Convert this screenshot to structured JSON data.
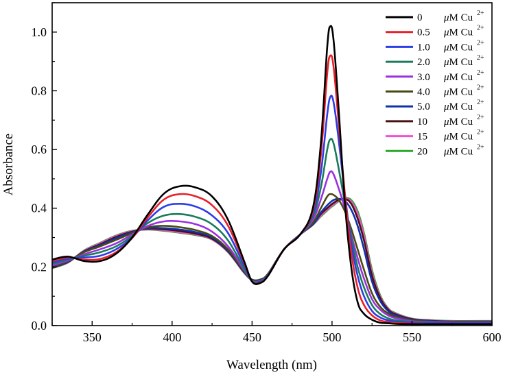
{
  "chart_data": {
    "type": "line",
    "title": "",
    "xlabel": "Wavelength (nm)",
    "ylabel": "Absorbance",
    "xlim": [
      325,
      600
    ],
    "ylim": [
      0,
      1.1
    ],
    "xticks": [
      "350",
      "400",
      "450",
      "500",
      "550",
      "600"
    ],
    "yticks": [
      "0.0",
      "0.2",
      "0.4",
      "0.6",
      "0.8",
      "1.0"
    ],
    "legend_position": "top-right",
    "legend_unit": "μM Cu",
    "legend_superscript": "2+",
    "x": [
      325,
      335,
      345,
      355,
      365,
      375,
      385,
      395,
      405,
      415,
      425,
      435,
      445,
      450,
      455,
      460,
      470,
      480,
      488,
      493,
      497,
      499,
      501,
      504,
      508,
      512,
      516,
      520,
      525,
      530,
      535,
      540,
      550,
      560,
      575,
      600
    ],
    "series": [
      {
        "name": "0",
        "color": "#000000",
        "values": [
          0.225,
          0.235,
          0.22,
          0.22,
          0.245,
          0.3,
          0.38,
          0.45,
          0.475,
          0.47,
          0.44,
          0.36,
          0.22,
          0.15,
          0.145,
          0.17,
          0.26,
          0.31,
          0.4,
          0.62,
          0.95,
          1.02,
          0.97,
          0.75,
          0.42,
          0.2,
          0.08,
          0.04,
          0.02,
          0.01,
          0.008,
          0.006,
          0.005,
          0.005,
          0.005,
          0.005
        ]
      },
      {
        "name": "0.5",
        "color": "#e8202a",
        "values": [
          0.22,
          0.232,
          0.225,
          0.227,
          0.25,
          0.298,
          0.37,
          0.43,
          0.448,
          0.44,
          0.41,
          0.34,
          0.215,
          0.15,
          0.147,
          0.17,
          0.26,
          0.31,
          0.39,
          0.58,
          0.86,
          0.92,
          0.88,
          0.7,
          0.45,
          0.25,
          0.13,
          0.07,
          0.035,
          0.018,
          0.012,
          0.009,
          0.007,
          0.006,
          0.006,
          0.006
        ]
      },
      {
        "name": "1.0",
        "color": "#2a3de6",
        "values": [
          0.215,
          0.228,
          0.232,
          0.238,
          0.26,
          0.3,
          0.36,
          0.405,
          0.415,
          0.405,
          0.375,
          0.315,
          0.205,
          0.15,
          0.15,
          0.17,
          0.26,
          0.31,
          0.38,
          0.52,
          0.72,
          0.78,
          0.76,
          0.64,
          0.45,
          0.28,
          0.17,
          0.1,
          0.05,
          0.028,
          0.018,
          0.013,
          0.009,
          0.008,
          0.008,
          0.008
        ]
      },
      {
        "name": "2.0",
        "color": "#1a7a5c",
        "values": [
          0.21,
          0.225,
          0.238,
          0.25,
          0.27,
          0.305,
          0.35,
          0.375,
          0.38,
          0.37,
          0.345,
          0.29,
          0.195,
          0.152,
          0.152,
          0.172,
          0.26,
          0.31,
          0.37,
          0.47,
          0.6,
          0.635,
          0.62,
          0.54,
          0.42,
          0.3,
          0.2,
          0.13,
          0.07,
          0.04,
          0.025,
          0.018,
          0.012,
          0.01,
          0.01,
          0.01
        ]
      },
      {
        "name": "3.0",
        "color": "#9b30e0",
        "values": [
          0.205,
          0.222,
          0.243,
          0.26,
          0.28,
          0.31,
          0.34,
          0.355,
          0.355,
          0.345,
          0.32,
          0.27,
          0.19,
          0.153,
          0.153,
          0.173,
          0.26,
          0.31,
          0.36,
          0.43,
          0.5,
          0.525,
          0.515,
          0.47,
          0.4,
          0.31,
          0.23,
          0.16,
          0.09,
          0.055,
          0.035,
          0.025,
          0.015,
          0.012,
          0.011,
          0.011
        ]
      },
      {
        "name": "4.0",
        "color": "#4a4a10",
        "values": [
          0.2,
          0.22,
          0.25,
          0.27,
          0.292,
          0.315,
          0.335,
          0.34,
          0.335,
          0.325,
          0.305,
          0.26,
          0.185,
          0.154,
          0.154,
          0.174,
          0.26,
          0.31,
          0.35,
          0.4,
          0.44,
          0.448,
          0.445,
          0.43,
          0.39,
          0.33,
          0.26,
          0.19,
          0.11,
          0.065,
          0.042,
          0.03,
          0.018,
          0.014,
          0.012,
          0.012
        ]
      },
      {
        "name": "5.0",
        "color": "#1030b0",
        "values": [
          0.198,
          0.218,
          0.252,
          0.274,
          0.298,
          0.318,
          0.332,
          0.332,
          0.327,
          0.318,
          0.3,
          0.256,
          0.183,
          0.155,
          0.155,
          0.175,
          0.26,
          0.31,
          0.345,
          0.385,
          0.41,
          0.42,
          0.428,
          0.432,
          0.425,
          0.395,
          0.34,
          0.26,
          0.15,
          0.085,
          0.05,
          0.035,
          0.02,
          0.016,
          0.013,
          0.013
        ]
      },
      {
        "name": "10",
        "color": "#4a1010",
        "values": [
          0.197,
          0.217,
          0.253,
          0.277,
          0.302,
          0.32,
          0.33,
          0.328,
          0.322,
          0.313,
          0.296,
          0.253,
          0.182,
          0.156,
          0.156,
          0.176,
          0.26,
          0.31,
          0.345,
          0.38,
          0.4,
          0.41,
          0.418,
          0.428,
          0.432,
          0.415,
          0.365,
          0.29,
          0.17,
          0.095,
          0.055,
          0.038,
          0.022,
          0.017,
          0.014,
          0.014
        ]
      },
      {
        "name": "15",
        "color": "#f24fd6",
        "values": [
          0.197,
          0.216,
          0.255,
          0.28,
          0.305,
          0.322,
          0.328,
          0.325,
          0.318,
          0.31,
          0.294,
          0.251,
          0.181,
          0.156,
          0.156,
          0.176,
          0.26,
          0.31,
          0.344,
          0.375,
          0.395,
          0.405,
          0.413,
          0.425,
          0.433,
          0.422,
          0.38,
          0.305,
          0.18,
          0.1,
          0.058,
          0.04,
          0.023,
          0.018,
          0.015,
          0.015
        ]
      },
      {
        "name": "20",
        "color": "#2aa82a",
        "values": [
          0.196,
          0.215,
          0.256,
          0.282,
          0.307,
          0.323,
          0.327,
          0.323,
          0.316,
          0.308,
          0.293,
          0.25,
          0.18,
          0.157,
          0.157,
          0.177,
          0.26,
          0.31,
          0.343,
          0.372,
          0.392,
          0.402,
          0.41,
          0.423,
          0.434,
          0.428,
          0.39,
          0.315,
          0.19,
          0.105,
          0.06,
          0.042,
          0.024,
          0.019,
          0.016,
          0.016
        ]
      }
    ]
  }
}
